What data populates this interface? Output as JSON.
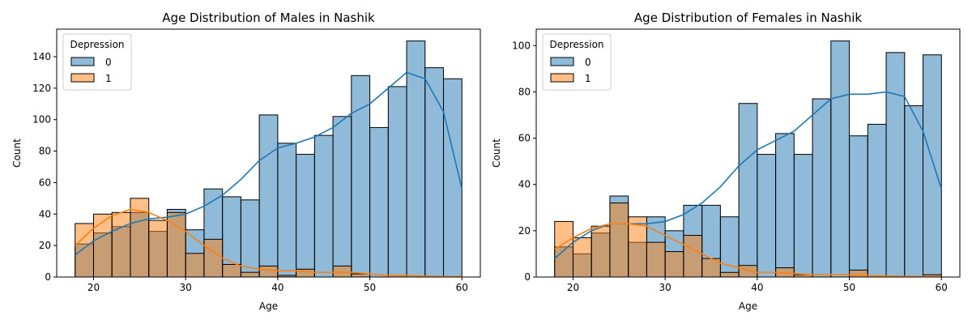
{
  "chart_data": [
    {
      "type": "histogram",
      "title": "Age Distribution of Males in Nashik",
      "xlabel": "Age",
      "ylabel": "Count",
      "xlim": [
        16,
        62
      ],
      "ylim": [
        0,
        157.5
      ],
      "xticks": [
        20,
        30,
        40,
        50,
        60
      ],
      "yticks": [
        0,
        20,
        40,
        60,
        80,
        100,
        120,
        140
      ],
      "bin_edges": [
        18,
        20,
        22,
        24,
        26,
        28,
        30,
        32,
        34,
        36,
        38,
        40,
        42,
        44,
        46,
        48,
        50,
        52,
        54,
        56,
        58,
        60
      ],
      "legend": {
        "title": "Depression",
        "position": "upper-left",
        "entries": [
          "0",
          "1"
        ]
      },
      "series": [
        {
          "name": "0",
          "color": "#1f77b4",
          "values": [
            21,
            28,
            32,
            41,
            29,
            43,
            30,
            56,
            51,
            49,
            103,
            85,
            78,
            90,
            102,
            128,
            95,
            121,
            150,
            133,
            126
          ],
          "kde": [
            [
              18,
              14
            ],
            [
              20,
              23
            ],
            [
              22,
              29
            ],
            [
              24,
              34
            ],
            [
              26,
              37
            ],
            [
              28,
              38
            ],
            [
              30,
              40
            ],
            [
              32,
              45
            ],
            [
              34,
              52
            ],
            [
              36,
              62
            ],
            [
              38,
              74
            ],
            [
              40,
              82
            ],
            [
              42,
              85
            ],
            [
              44,
              89
            ],
            [
              46,
              95
            ],
            [
              48,
              104
            ],
            [
              50,
              110
            ],
            [
              52,
              120
            ],
            [
              54,
              130
            ],
            [
              56,
              126
            ],
            [
              58,
              105
            ],
            [
              60,
              56
            ]
          ]
        },
        {
          "name": "1",
          "color": "#ff7f0e",
          "values": [
            34,
            40,
            41,
            50,
            36,
            41,
            15,
            24,
            8,
            3,
            7,
            1,
            5,
            0,
            7,
            2,
            0,
            1,
            0,
            0,
            0
          ],
          "kde": [
            [
              18,
              20
            ],
            [
              20,
              31
            ],
            [
              22,
              39
            ],
            [
              24,
              43
            ],
            [
              26,
              41
            ],
            [
              28,
              36
            ],
            [
              30,
              29
            ],
            [
              32,
              20
            ],
            [
              34,
              12
            ],
            [
              36,
              7
            ],
            [
              38,
              5
            ],
            [
              40,
              4
            ],
            [
              42,
              4
            ],
            [
              44,
              3
            ],
            [
              46,
              3
            ],
            [
              48,
              3
            ],
            [
              50,
              2
            ],
            [
              52,
              1
            ],
            [
              54,
              1
            ],
            [
              56,
              0.5
            ],
            [
              58,
              0.3
            ],
            [
              60,
              0.2
            ]
          ]
        }
      ]
    },
    {
      "type": "histogram",
      "title": "Age Distribution of Females in Nashik",
      "xlabel": "Age",
      "ylabel": "Count",
      "xlim": [
        16,
        62
      ],
      "ylim": [
        0,
        107.1
      ],
      "xticks": [
        20,
        30,
        40,
        50,
        60
      ],
      "yticks": [
        0,
        20,
        40,
        60,
        80,
        100
      ],
      "bin_edges": [
        18,
        20,
        22,
        24,
        26,
        28,
        30,
        32,
        34,
        36,
        38,
        40,
        42,
        44,
        46,
        48,
        50,
        52,
        54,
        56,
        58,
        60
      ],
      "legend": {
        "title": "Depression",
        "position": "upper-left",
        "entries": [
          "0",
          "1"
        ]
      },
      "series": [
        {
          "name": "0",
          "color": "#1f77b4",
          "values": [
            13,
            10,
            19,
            35,
            15,
            26,
            20,
            31,
            31,
            26,
            75,
            53,
            62,
            53,
            77,
            102,
            61,
            66,
            97,
            74,
            96
          ],
          "kde": [
            [
              18,
              8
            ],
            [
              20,
              15
            ],
            [
              22,
              20
            ],
            [
              24,
              23
            ],
            [
              26,
              23
            ],
            [
              28,
              23
            ],
            [
              30,
              24
            ],
            [
              32,
              27
            ],
            [
              34,
              32
            ],
            [
              36,
              39
            ],
            [
              38,
              48
            ],
            [
              40,
              55
            ],
            [
              42,
              59
            ],
            [
              44,
              63
            ],
            [
              46,
              70
            ],
            [
              48,
              77
            ],
            [
              50,
              79
            ],
            [
              52,
              79
            ],
            [
              54,
              80
            ],
            [
              56,
              78
            ],
            [
              58,
              63
            ],
            [
              60,
              38
            ]
          ]
        },
        {
          "name": "1",
          "color": "#ff7f0e",
          "values": [
            24,
            17,
            22,
            32,
            26,
            15,
            11,
            18,
            8,
            2,
            5,
            0,
            4,
            1,
            0,
            0,
            3,
            0,
            0,
            0,
            1
          ],
          "kde": [
            [
              18,
              12
            ],
            [
              20,
              17
            ],
            [
              22,
              21
            ],
            [
              24,
              23
            ],
            [
              26,
              23
            ],
            [
              28,
              22
            ],
            [
              30,
              18
            ],
            [
              32,
              14
            ],
            [
              34,
              10
            ],
            [
              36,
              6
            ],
            [
              38,
              4
            ],
            [
              40,
              2
            ],
            [
              42,
              2
            ],
            [
              44,
              1.5
            ],
            [
              46,
              1
            ],
            [
              48,
              1
            ],
            [
              50,
              1
            ],
            [
              52,
              0.6
            ],
            [
              54,
              0.4
            ],
            [
              56,
              0.3
            ],
            [
              58,
              0.2
            ],
            [
              60,
              0.2
            ]
          ]
        }
      ]
    }
  ]
}
